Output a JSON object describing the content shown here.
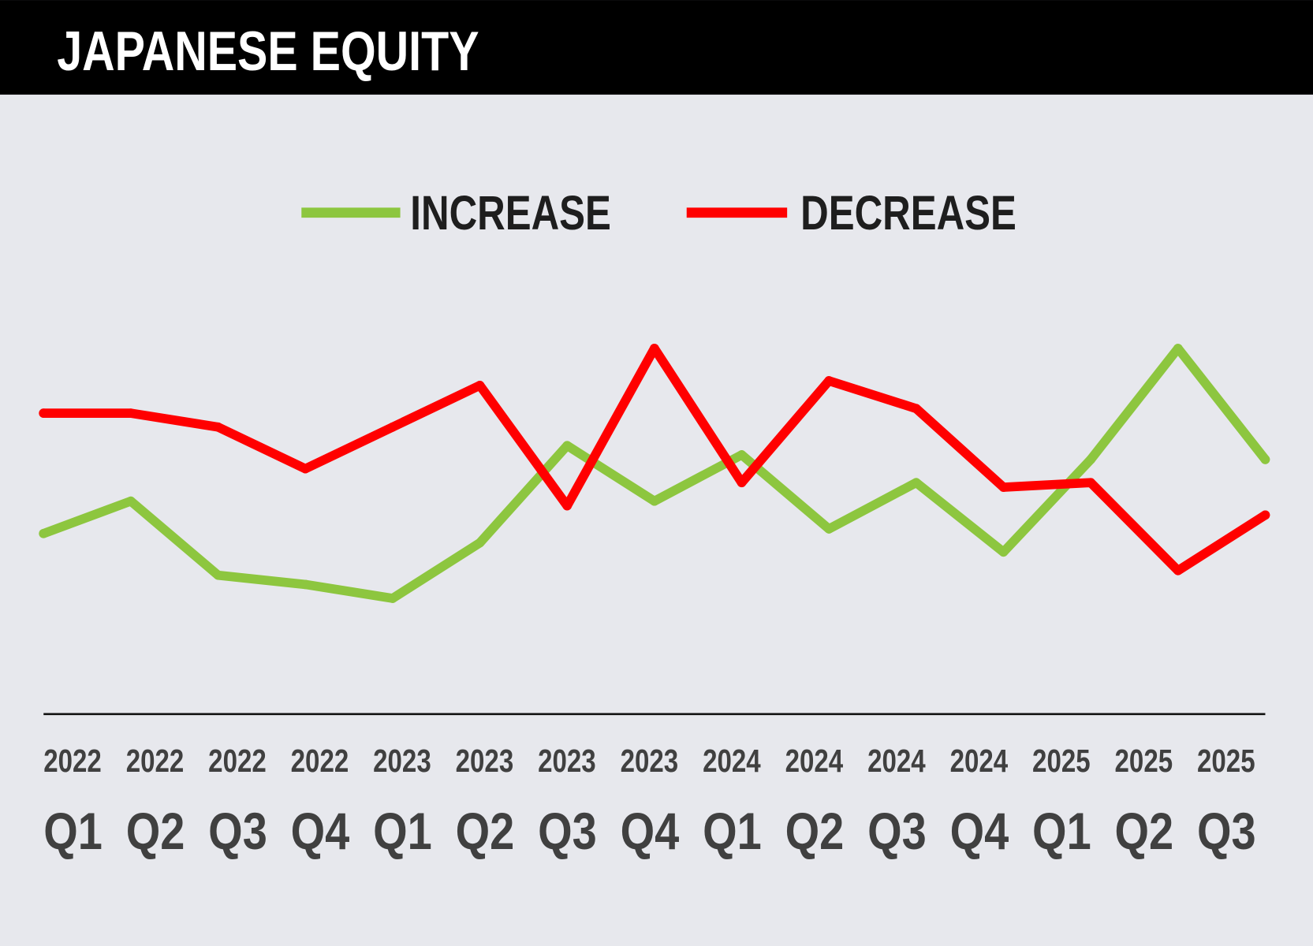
{
  "chart_data": {
    "type": "line",
    "title": "JAPANESE EQUITY",
    "xlabel": "",
    "ylabel": "",
    "ylim": [
      0,
      100
    ],
    "grid": false,
    "legend_position": "top-center",
    "categories": [
      {
        "year": "2022",
        "quarter": "Q1"
      },
      {
        "year": "2022",
        "quarter": "Q2"
      },
      {
        "year": "2022",
        "quarter": "Q3"
      },
      {
        "year": "2022",
        "quarter": "Q4"
      },
      {
        "year": "2023",
        "quarter": "Q1"
      },
      {
        "year": "2023",
        "quarter": "Q2"
      },
      {
        "year": "2023",
        "quarter": "Q3"
      },
      {
        "year": "2023",
        "quarter": "Q4"
      },
      {
        "year": "2024",
        "quarter": "Q1"
      },
      {
        "year": "2024",
        "quarter": "Q2"
      },
      {
        "year": "2024",
        "quarter": "Q3"
      },
      {
        "year": "2024",
        "quarter": "Q4"
      },
      {
        "year": "2025",
        "quarter": "Q1"
      },
      {
        "year": "2025",
        "quarter": "Q2"
      },
      {
        "year": "2025",
        "quarter": "Q3"
      }
    ],
    "series": [
      {
        "name": "INCREASE",
        "color": "#8dc63f",
        "values": [
          39,
          46,
          30,
          28,
          25,
          37,
          58,
          46,
          56,
          40,
          50,
          35,
          55,
          79,
          55
        ]
      },
      {
        "name": "DECREASE",
        "color": "#ff0000",
        "values": [
          65,
          65,
          62,
          53,
          62,
          71,
          45,
          79,
          50,
          72,
          66,
          49,
          50,
          31,
          43
        ]
      }
    ]
  }
}
